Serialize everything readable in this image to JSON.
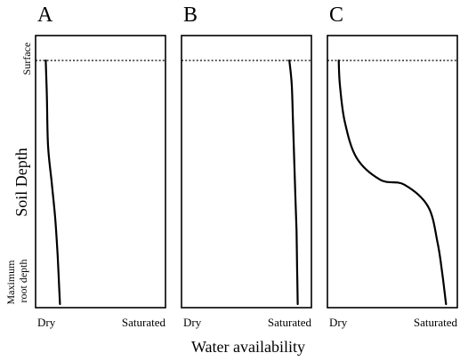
{
  "chart_data": {
    "type": "line",
    "xlabel": "Water availability",
    "ylabel": "Soil Depth",
    "x_tick_labels": [
      "Dry",
      "Saturated"
    ],
    "y_tick_labels": [
      "Surface",
      "Maximum root depth"
    ],
    "y_tick_lines": [
      "Maximum",
      "root depth"
    ],
    "xlim": [
      0,
      1
    ],
    "ylim": [
      0,
      1
    ],
    "y_inverted": true,
    "grid": false,
    "surface_reference_line": {
      "depth": 0,
      "style": "dotted"
    },
    "panels": [
      {
        "label": "A",
        "series": [
          {
            "x": [
              0.04,
              0.05,
              0.06,
              0.09,
              0.12,
              0.14,
              0.15,
              0.16
            ],
            "y": [
              0.0,
              0.15,
              0.35,
              0.5,
              0.65,
              0.8,
              0.9,
              1.0
            ]
          }
        ]
      },
      {
        "label": "B",
        "series": [
          {
            "x": [
              0.86,
              0.88,
              0.89,
              0.9,
              0.91,
              0.92,
              0.925,
              0.93
            ],
            "y": [
              0.0,
              0.1,
              0.25,
              0.4,
              0.55,
              0.7,
              0.85,
              1.0
            ]
          }
        ]
      },
      {
        "label": "C",
        "series": [
          {
            "x": [
              0.05,
              0.06,
              0.1,
              0.2,
              0.4,
              0.6,
              0.8,
              0.88,
              0.92,
              0.94,
              0.95
            ],
            "y": [
              0.0,
              0.1,
              0.25,
              0.4,
              0.49,
              0.51,
              0.6,
              0.75,
              0.88,
              0.96,
              1.0
            ]
          }
        ]
      }
    ]
  }
}
